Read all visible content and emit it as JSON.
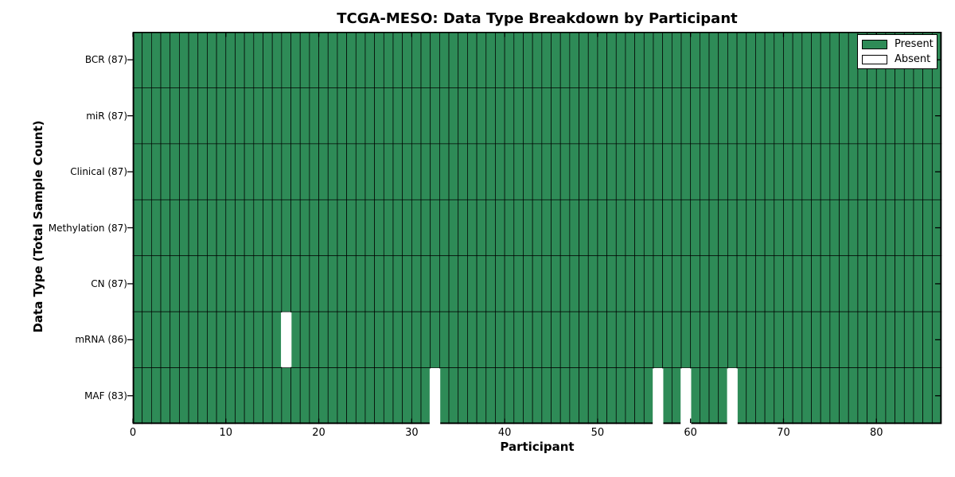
{
  "chart_data": {
    "type": "heatmap",
    "title": "TCGA-MESO: Data Type Breakdown by Participant",
    "xlabel": "Participant",
    "ylabel": "Data Type (Total Sample Count)",
    "x_ticks": [
      0,
      10,
      20,
      30,
      40,
      50,
      60,
      70,
      80
    ],
    "x_range": [
      0,
      87
    ],
    "n_participants": 87,
    "rows": [
      {
        "name": "BCR",
        "label": "BCR (87)",
        "total": 87,
        "absent_participants": []
      },
      {
        "name": "miR",
        "label": "miR (87)",
        "total": 87,
        "absent_participants": []
      },
      {
        "name": "Clinical",
        "label": "Clinical (87)",
        "total": 87,
        "absent_participants": []
      },
      {
        "name": "Methylation",
        "label": "Methylation (87)",
        "total": 87,
        "absent_participants": []
      },
      {
        "name": "CN",
        "label": "CN (87)",
        "total": 87,
        "absent_participants": []
      },
      {
        "name": "mRNA",
        "label": "mRNA (86)",
        "total": 86,
        "absent_participants": [
          16
        ]
      },
      {
        "name": "MAF",
        "label": "MAF (83)",
        "total": 83,
        "absent_participants": [
          32,
          56,
          59,
          64
        ]
      }
    ],
    "legend": [
      {
        "label": "Present",
        "color": "#2e8b57"
      },
      {
        "label": "Absent",
        "color": "#ffffff"
      }
    ],
    "colors": {
      "present": "#2e8b57",
      "absent": "#ffffff",
      "edge": "#000000",
      "background": "#ffffff"
    },
    "legend_position": "upper right",
    "cell_edges": true
  }
}
